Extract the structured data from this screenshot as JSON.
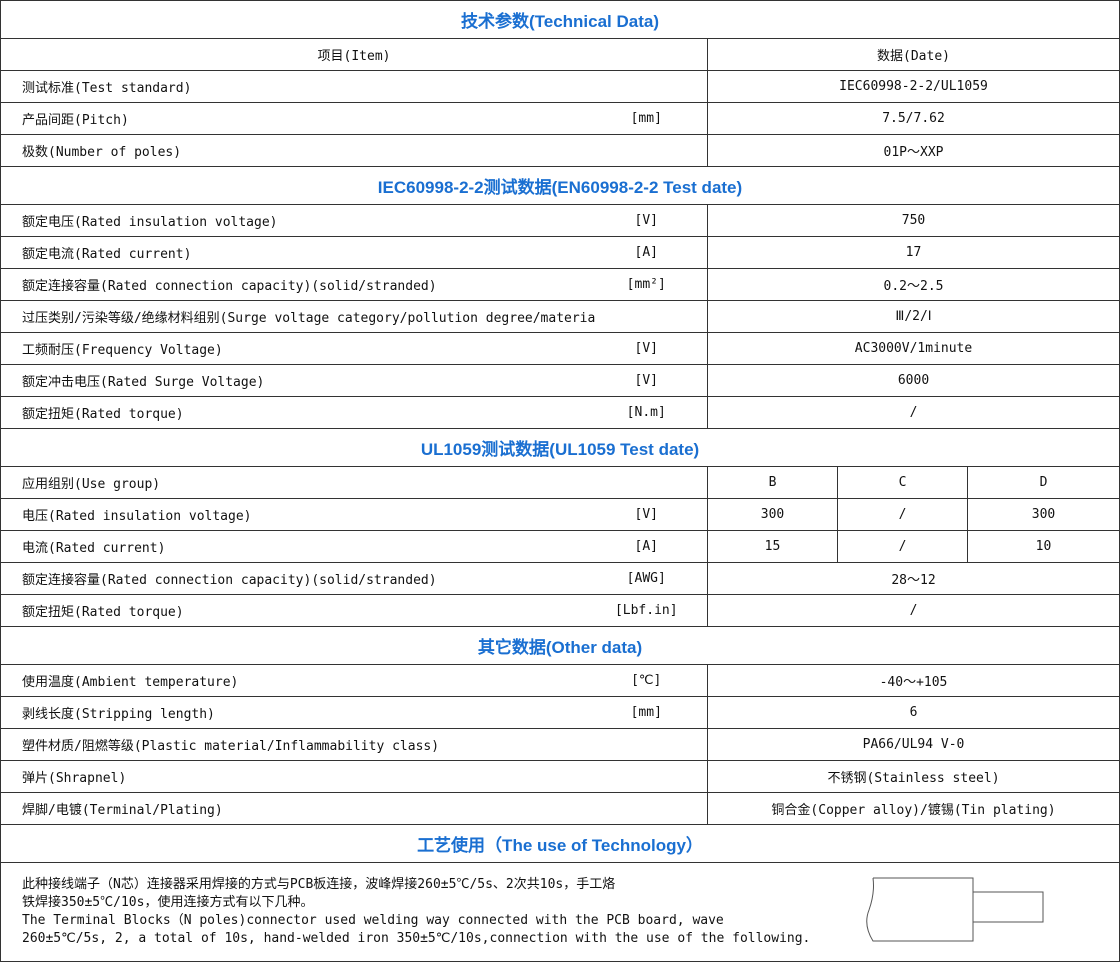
{
  "title": "技术参数(Technical Data)",
  "header": {
    "item": "项目(Item)",
    "data": "数据(Date)"
  },
  "general": [
    {
      "label": "测试标准(Test standard)",
      "unit": "",
      "value": "IEC60998-2-2/UL1059"
    },
    {
      "label": "产品间距(Pitch)",
      "unit": "[mm]",
      "value": "7.5/7.62"
    },
    {
      "label": "极数(Number of poles)",
      "unit": "",
      "value": "01P～XXP"
    }
  ],
  "iec_title": "IEC60998-2-2测试数据(EN60998-2-2 Test date)",
  "iec": [
    {
      "label": "额定电压(Rated insulation voltage)",
      "unit": "[V]",
      "value": "750"
    },
    {
      "label": "额定电流(Rated current)",
      "unit": "[A]",
      "value": "17"
    },
    {
      "label": "额定连接容量(Rated connection capacity)(solid/stranded)",
      "unit": "[mm²]",
      "value": "0.2～2.5"
    },
    {
      "label": "过压类别/污染等级/绝缘材料组别(Surge voltage category/pollution degree/material group)",
      "unit": "",
      "value": "Ⅲ/2/Ⅰ"
    },
    {
      "label": "工频耐压(Frequency Voltage)",
      "unit": "[V]",
      "value": "AC3000V/1minute"
    },
    {
      "label": "额定冲击电压(Rated Surge Voltage)",
      "unit": "[V]",
      "value": "6000"
    },
    {
      "label": "额定扭矩(Rated torque)",
      "unit": "[N.m]",
      "value": "/"
    }
  ],
  "ul_title": "UL1059测试数据(UL1059 Test date)",
  "ul": [
    {
      "label": "应用组别(Use group)",
      "unit": "",
      "values": [
        "B",
        "C",
        "D"
      ]
    },
    {
      "label": "电压(Rated insulation voltage)",
      "unit": "[V]",
      "values": [
        "300",
        "/",
        "300"
      ]
    },
    {
      "label": "电流(Rated current)",
      "unit": "[A]",
      "values": [
        "15",
        "/",
        "10"
      ]
    },
    {
      "label": "额定连接容量(Rated connection capacity)(solid/stranded)",
      "unit": "[AWG]",
      "value": "28～12"
    },
    {
      "label": "额定扭矩(Rated torque)",
      "unit": "[Lbf.in]",
      "value": "/"
    }
  ],
  "other_title": "其它数据(Other data)",
  "other": [
    {
      "label": "使用温度(Ambient temperature)",
      "unit": "[℃]",
      "value": "-40～+105"
    },
    {
      "label": "剥线长度(Stripping length)",
      "unit": "[mm]",
      "value": "6"
    },
    {
      "label": "塑件材质/阻燃等级(Plastic material/Inflammability class)",
      "unit": "",
      "value": "PA66/UL94 V-0"
    },
    {
      "label": "弹片(Shrapnel)",
      "unit": "",
      "value": "不锈钢(Stainless steel)"
    },
    {
      "label": "焊脚/电镀(Terminal/Plating)",
      "unit": "",
      "value": "铜合金(Copper alloy)/镀锡(Tin plating)"
    }
  ],
  "tech_title": "工艺使用（The use of Technology）",
  "tech_lines": [
    "此种接线端子（N芯）连接器采用焊接的方式与PCB板连接，波峰焊接260±5℃/5s、2次共10s，手工烙",
    "铁焊接350±5℃/10s，使用连接方式有以下几种。",
    "The Terminal Blocks（N poles)connector used welding way connected with the PCB board, wave",
    "260±5℃/5s, 2, a total of 10s, hand-welded iron 350±5℃/10s,connection with the use of the following."
  ]
}
